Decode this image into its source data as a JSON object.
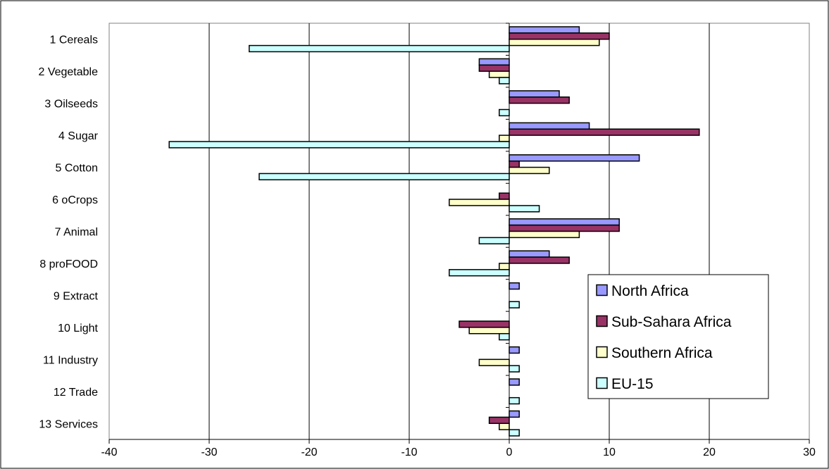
{
  "chart_data": {
    "type": "bar",
    "orientation": "horizontal",
    "title": "",
    "xlabel": "",
    "ylabel": "",
    "xlim": [
      -40,
      30
    ],
    "x_ticks": [
      "-40",
      "-30",
      "-20",
      "-10",
      "0",
      "10",
      "20",
      "30"
    ],
    "grid": true,
    "legend_position": "bottom-right",
    "categories": [
      "1 Cereals",
      "2 Vegetable",
      "3 Oilseeds",
      "4 Sugar",
      "5 Cotton",
      "6 oCrops",
      "7 Animal",
      "8 proFOOD",
      "9 Extract",
      "10 Light",
      "11 Industry",
      "12 Trade",
      "13 Services"
    ],
    "series": [
      {
        "name": "North Africa",
        "color": "#9999ff",
        "values": [
          7,
          -3,
          5,
          8,
          13,
          0,
          11,
          4,
          1,
          0,
          1,
          1,
          1
        ]
      },
      {
        "name": "Sub-Sahara Africa",
        "color": "#993366",
        "values": [
          10,
          -3,
          6,
          19,
          1,
          -1,
          11,
          6,
          0,
          -5,
          0,
          0,
          -2
        ]
      },
      {
        "name": "Southern Africa",
        "color": "#ffffcc",
        "values": [
          9,
          -2,
          0,
          -1,
          4,
          -6,
          7,
          -1,
          0,
          -4,
          -3,
          0,
          -1
        ]
      },
      {
        "name": "EU-15",
        "color": "#ccffff",
        "values": [
          -26,
          -1,
          -1,
          -34,
          -25,
          3,
          -3,
          -6,
          1,
          -1,
          1,
          1,
          1
        ]
      }
    ]
  }
}
